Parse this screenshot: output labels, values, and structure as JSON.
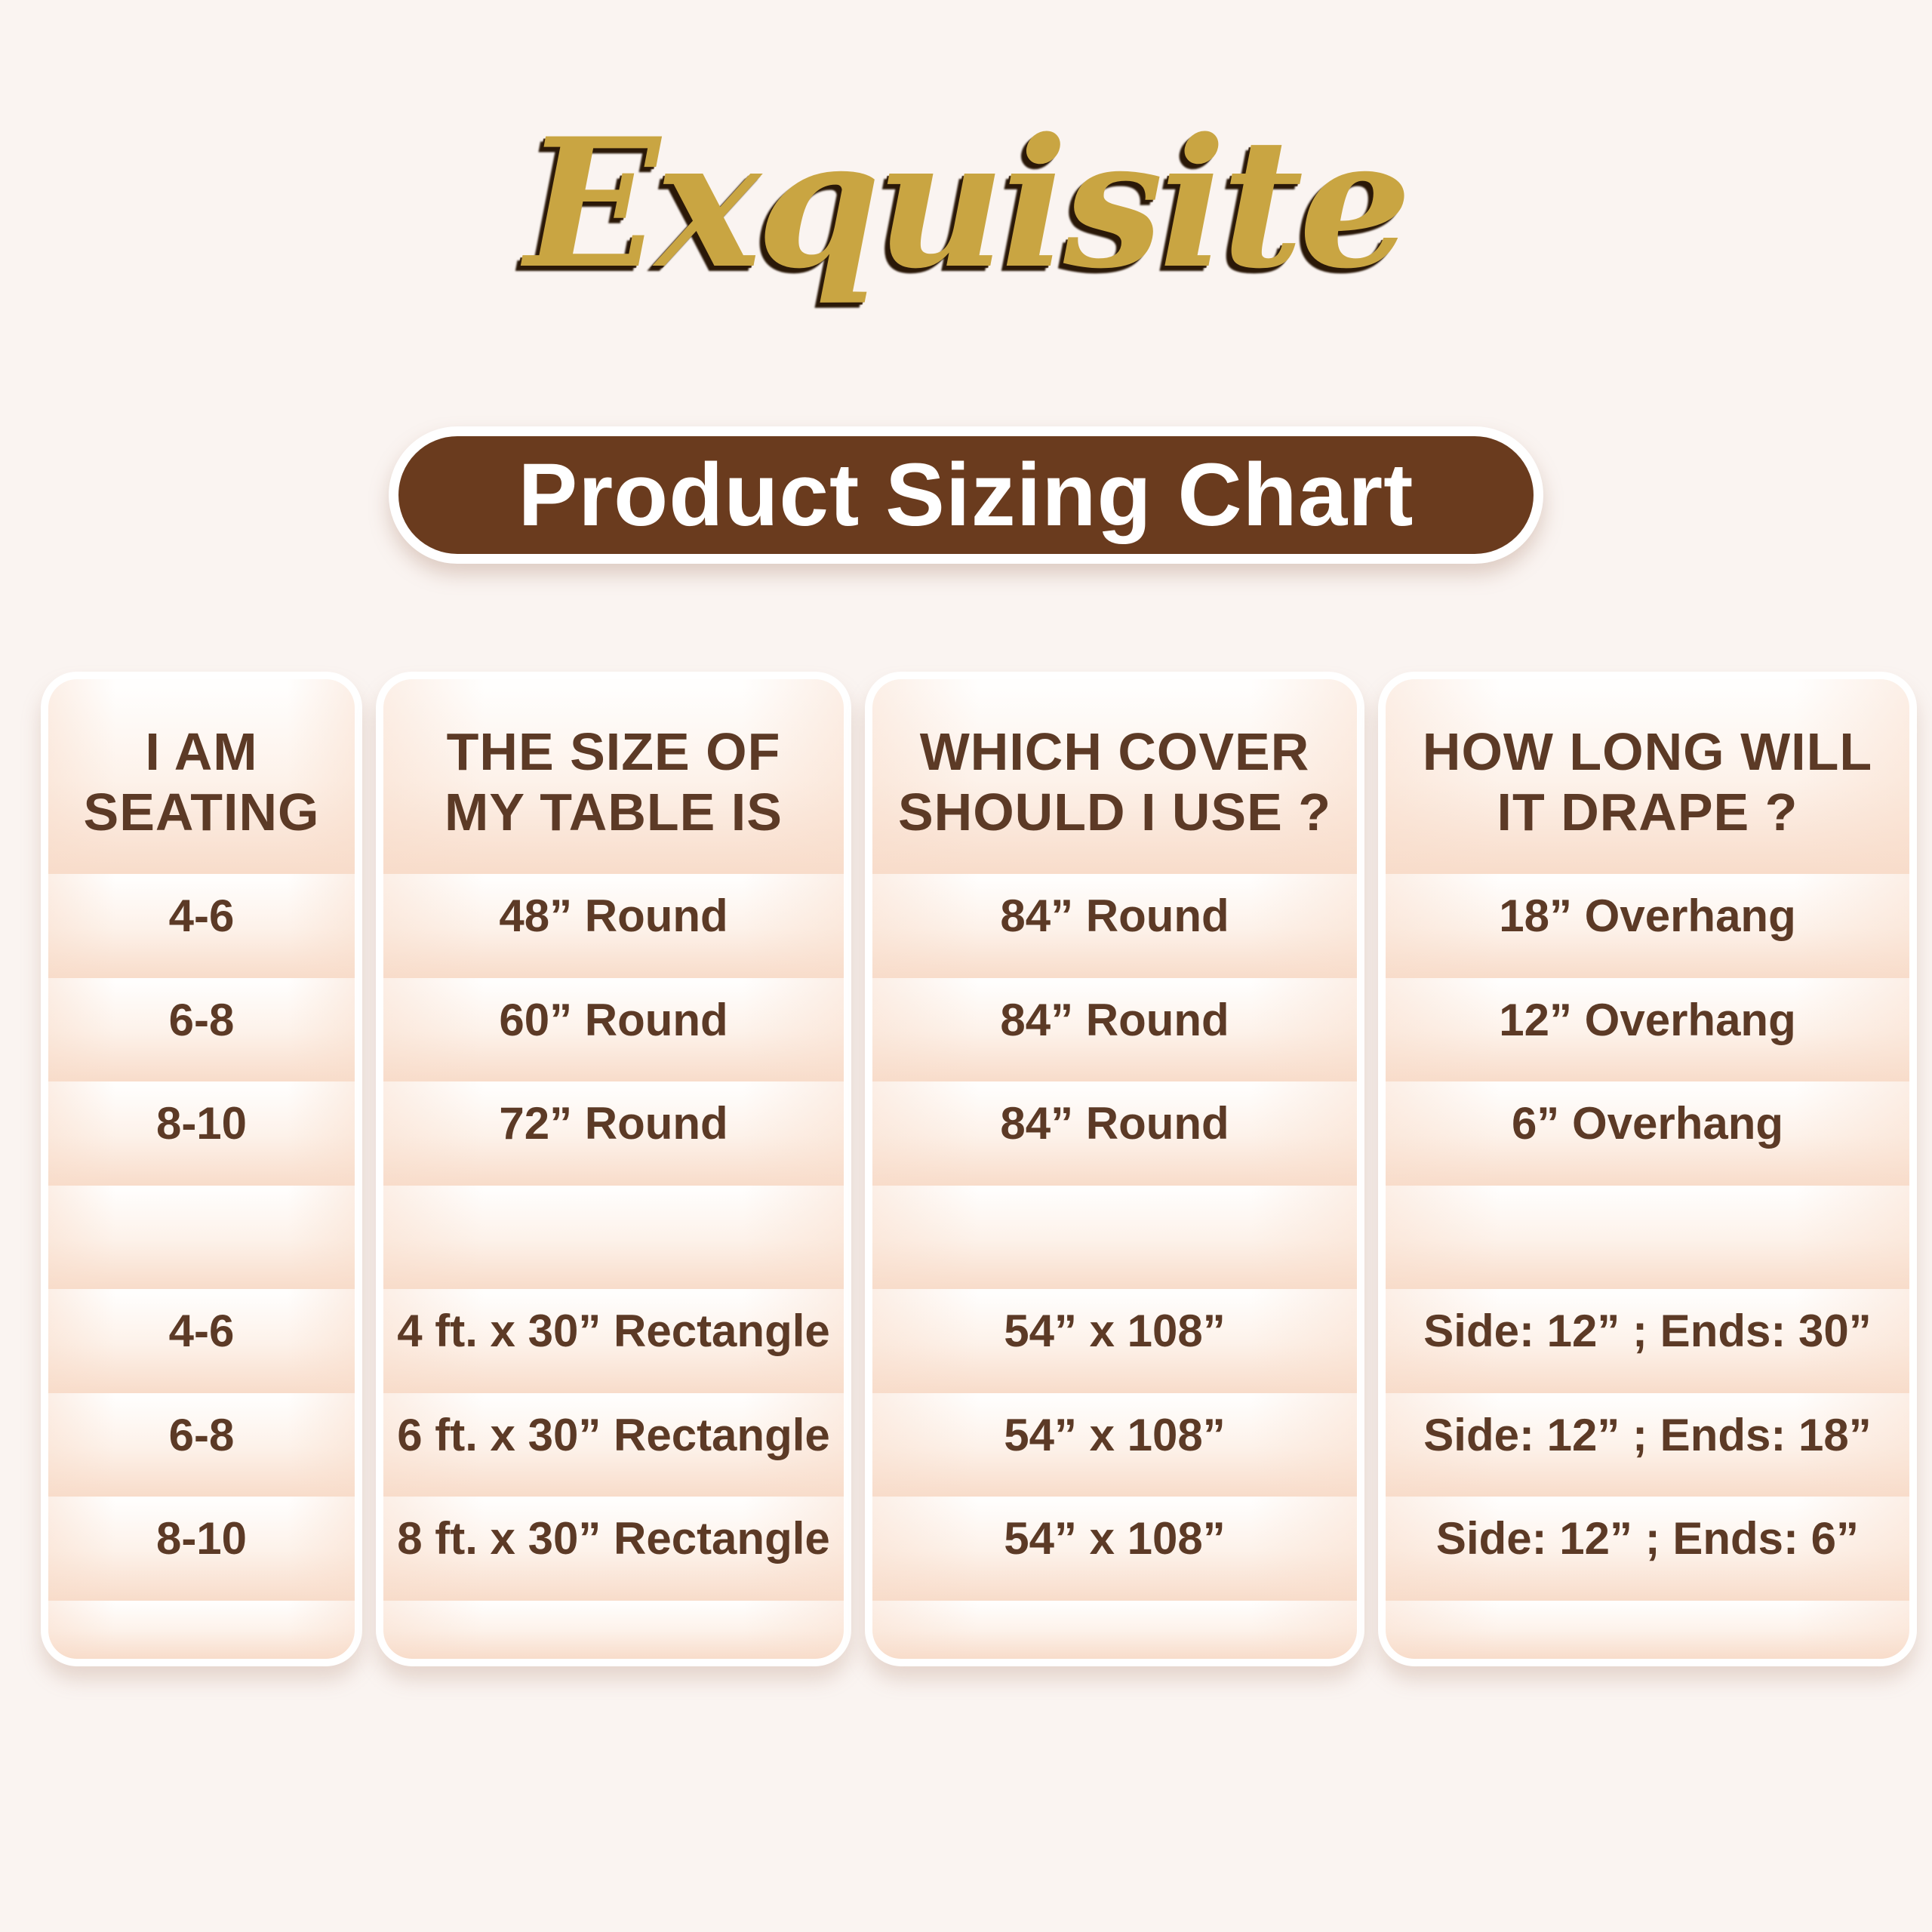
{
  "brand": {
    "name": "Exquisite",
    "logo_color": "#c9a542"
  },
  "title": {
    "text": "Product Sizing Chart",
    "bg_color": "#6a3b1e",
    "text_color": "#ffffff"
  },
  "colors": {
    "page_bg": "#faf4f1",
    "text_brown": "#5c3a26",
    "stripe_pink": "#f8dcca",
    "card_border": "#ffffff"
  },
  "table": {
    "columns": [
      {
        "header": "I AM SEATING",
        "header_lines": [
          "I AM",
          "SEATING"
        ],
        "cells": [
          "4-6",
          "6-8",
          "8-10",
          "",
          "4-6",
          "6-8",
          "8-10"
        ]
      },
      {
        "header": "THE SIZE OF MY TABLE IS",
        "header_lines": [
          "THE SIZE OF",
          "MY TABLE IS"
        ],
        "cells": [
          "48” Round",
          "60” Round",
          "72” Round",
          "",
          "4 ft. x 30” Rectangle",
          "6 ft. x 30” Rectangle",
          "8 ft. x 30” Rectangle"
        ]
      },
      {
        "header": "WHICH COVER SHOULD I USE ?",
        "header_lines": [
          "WHICH COVER",
          "SHOULD I USE ?"
        ],
        "cells": [
          "84” Round",
          "84” Round",
          "84” Round",
          "",
          "54” x 108”",
          "54” x 108”",
          "54” x 108”"
        ]
      },
      {
        "header": "HOW LONG WILL IT DRAPE ?",
        "header_lines": [
          "HOW LONG WILL",
          "IT DRAPE ?"
        ],
        "cells": [
          "18” Overhang",
          "12” Overhang",
          "6” Overhang",
          "",
          "Side: 12” ; Ends: 30”",
          "Side: 12” ; Ends: 18”",
          "Side: 12” ; Ends: 6”"
        ]
      }
    ]
  }
}
